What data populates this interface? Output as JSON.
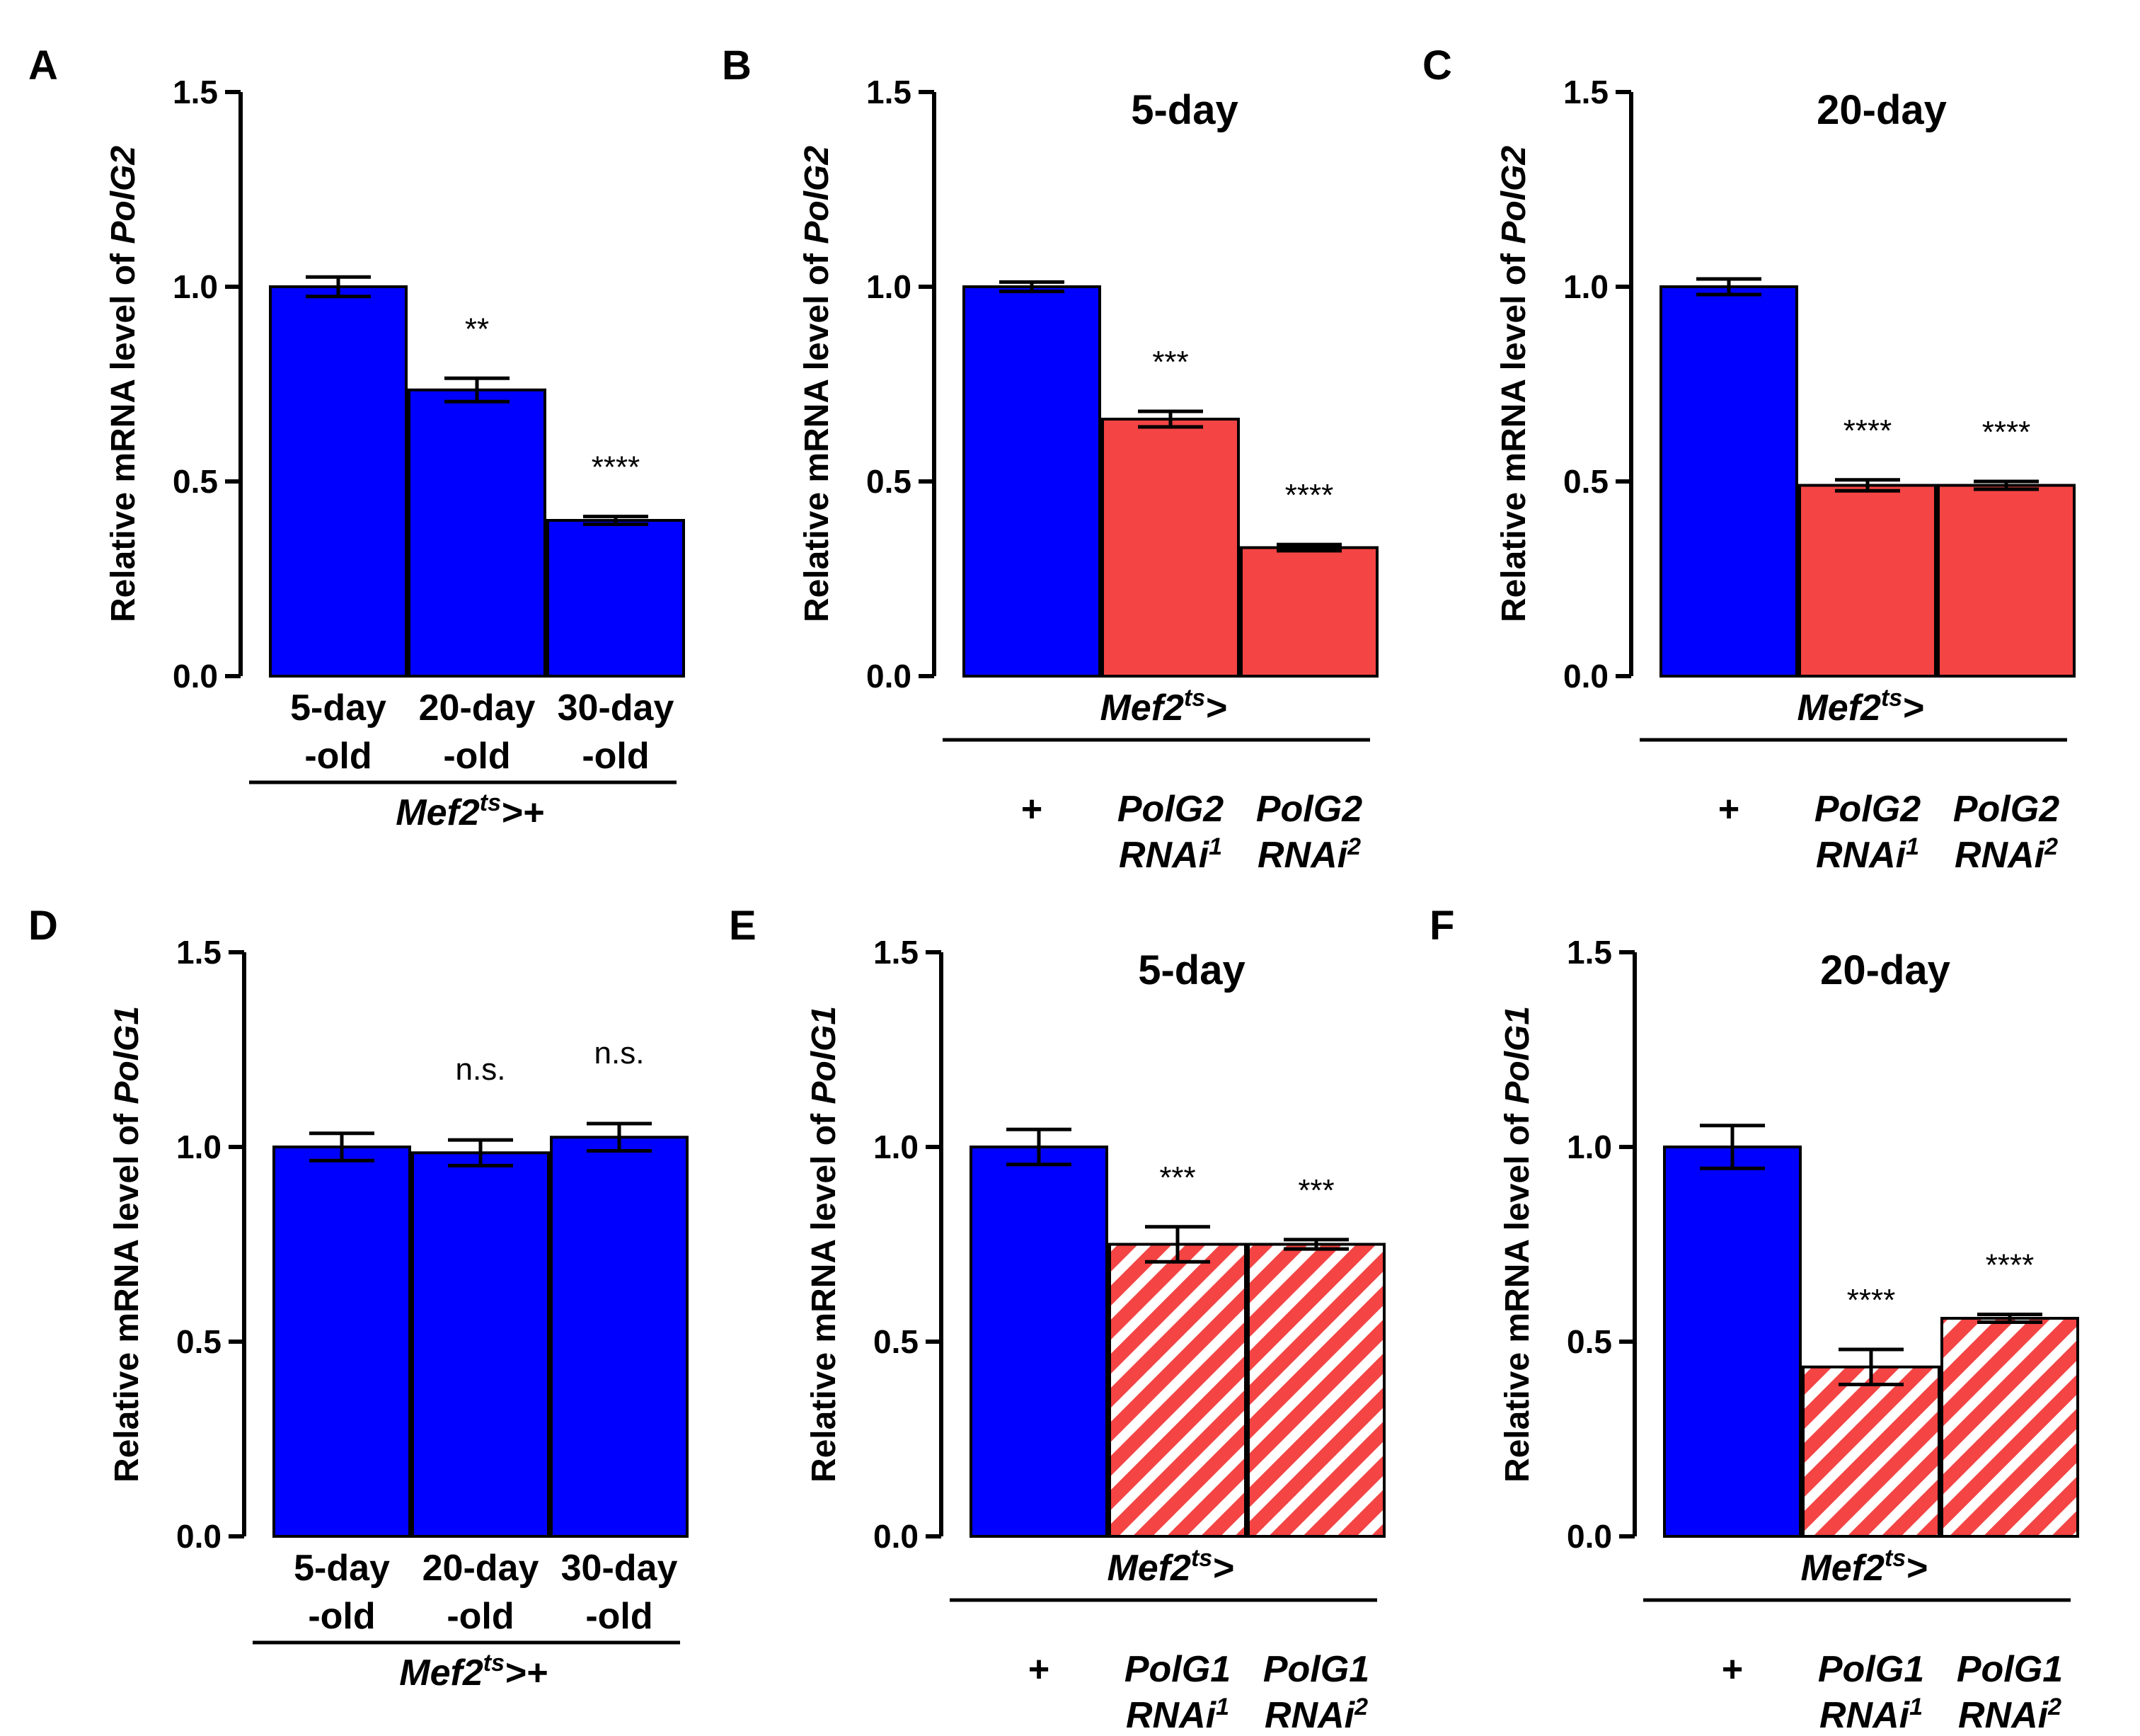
{
  "colors": {
    "control": "#0000ff",
    "rnai": "#f44444",
    "stripe_bg": "#ffffff",
    "axis": "#000000"
  },
  "chart_data": [
    {
      "panel": "A",
      "type": "bar",
      "title": "",
      "ylabel_prefix": "Relative mRNA level of ",
      "ylabel_gene": "PolG2",
      "ylim": [
        0,
        1.5
      ],
      "yticks": [
        "0.0",
        "0.5",
        "1.0",
        "1.5"
      ],
      "categories": [
        {
          "line1": "5-day",
          "line2": "-old"
        },
        {
          "line1": "20-day",
          "line2": "-old"
        },
        {
          "line1": "30-day",
          "line2": "-old"
        }
      ],
      "values": [
        1.0,
        0.735,
        0.4
      ],
      "errors": [
        0.025,
        0.03,
        0.01
      ],
      "fills": [
        "solid-blue",
        "solid-blue",
        "solid-blue"
      ],
      "significance": [
        "",
        "**",
        "****"
      ],
      "group_label": {
        "prefix": "Mef2",
        "sup": "ts",
        "suffix": ">+"
      }
    },
    {
      "panel": "B",
      "type": "bar",
      "title": "5-day",
      "ylabel_prefix": "Relative mRNA level of ",
      "ylabel_gene": "PolG2",
      "ylim": [
        0,
        1.5
      ],
      "yticks": [
        "0.0",
        "0.5",
        "1.0",
        "1.5"
      ],
      "categories": [
        {
          "line1": "+",
          "line2": ""
        },
        {
          "line1": "PolG2",
          "line2": "RNAi",
          "sup": "1"
        },
        {
          "line1": "PolG2",
          "line2": "RNAi",
          "sup": "2"
        }
      ],
      "values": [
        1.0,
        0.66,
        0.33
      ],
      "errors": [
        0.012,
        0.02,
        0.008
      ],
      "fills": [
        "solid-blue",
        "solid-red",
        "solid-red"
      ],
      "significance": [
        "",
        "***",
        "****"
      ],
      "group_label": {
        "prefix": "Mef2",
        "sup": "ts",
        "suffix": ">"
      }
    },
    {
      "panel": "C",
      "type": "bar",
      "title": "20-day",
      "ylabel_prefix": "Relative mRNA level of ",
      "ylabel_gene": "PolG2",
      "ylim": [
        0,
        1.5
      ],
      "yticks": [
        "0.0",
        "0.5",
        "1.0",
        "1.5"
      ],
      "categories": [
        {
          "line1": "+",
          "line2": ""
        },
        {
          "line1": "PolG2",
          "line2": "RNAi",
          "sup": "1"
        },
        {
          "line1": "PolG2",
          "line2": "RNAi",
          "sup": "2"
        }
      ],
      "values": [
        1.0,
        0.49,
        0.49
      ],
      "errors": [
        0.02,
        0.014,
        0.01
      ],
      "fills": [
        "solid-blue",
        "solid-red",
        "solid-red"
      ],
      "significance": [
        "",
        "****",
        "****"
      ],
      "group_label": {
        "prefix": "Mef2",
        "sup": "ts",
        "suffix": ">"
      }
    },
    {
      "panel": "D",
      "type": "bar",
      "title": "",
      "ylabel_prefix": "Relative mRNA level of ",
      "ylabel_gene": "PolG1",
      "ylim": [
        0,
        1.5
      ],
      "yticks": [
        "0.0",
        "0.5",
        "1.0",
        "1.5"
      ],
      "categories": [
        {
          "line1": "5-day",
          "line2": "-old"
        },
        {
          "line1": "20-day",
          "line2": "-old"
        },
        {
          "line1": "30-day",
          "line2": "-old"
        }
      ],
      "values": [
        1.0,
        0.985,
        1.025
      ],
      "errors": [
        0.035,
        0.033,
        0.035
      ],
      "fills": [
        "solid-blue",
        "solid-blue",
        "solid-blue"
      ],
      "significance": [
        "",
        "n.s.",
        "n.s."
      ],
      "group_label": {
        "prefix": "Mef2",
        "sup": "ts",
        "suffix": ">+"
      }
    },
    {
      "panel": "E",
      "type": "bar",
      "title": "5-day",
      "ylabel_prefix": "Relative mRNA level of ",
      "ylabel_gene": "PolG1",
      "ylim": [
        0,
        1.5
      ],
      "yticks": [
        "0.0",
        "0.5",
        "1.0",
        "1.5"
      ],
      "categories": [
        {
          "line1": "+",
          "line2": ""
        },
        {
          "line1": "PolG1",
          "line2": "RNAi",
          "sup": "1"
        },
        {
          "line1": "PolG1",
          "line2": "RNAi",
          "sup": "2"
        }
      ],
      "values": [
        1.0,
        0.75,
        0.75
      ],
      "errors": [
        0.045,
        0.045,
        0.012
      ],
      "fills": [
        "solid-blue",
        "striped-red",
        "striped-red"
      ],
      "significance": [
        "",
        "***",
        "***"
      ],
      "group_label": {
        "prefix": "Mef2",
        "sup": "ts",
        "suffix": ">"
      }
    },
    {
      "panel": "F",
      "type": "bar",
      "title": "20-day",
      "ylabel_prefix": "Relative mRNA level of ",
      "ylabel_gene": "PolG1",
      "ylim": [
        0,
        1.5
      ],
      "yticks": [
        "0.0",
        "0.5",
        "1.0",
        "1.5"
      ],
      "categories": [
        {
          "line1": "+",
          "line2": ""
        },
        {
          "line1": "PolG1",
          "line2": "RNAi",
          "sup": "1"
        },
        {
          "line1": "PolG1",
          "line2": "RNAi",
          "sup": "2"
        }
      ],
      "values": [
        1.0,
        0.435,
        0.56
      ],
      "errors": [
        0.055,
        0.045,
        0.01
      ],
      "fills": [
        "solid-blue",
        "striped-red",
        "striped-red"
      ],
      "significance": [
        "",
        "****",
        "****"
      ],
      "group_label": {
        "prefix": "Mef2",
        "sup": "ts",
        "suffix": ">"
      }
    }
  ]
}
